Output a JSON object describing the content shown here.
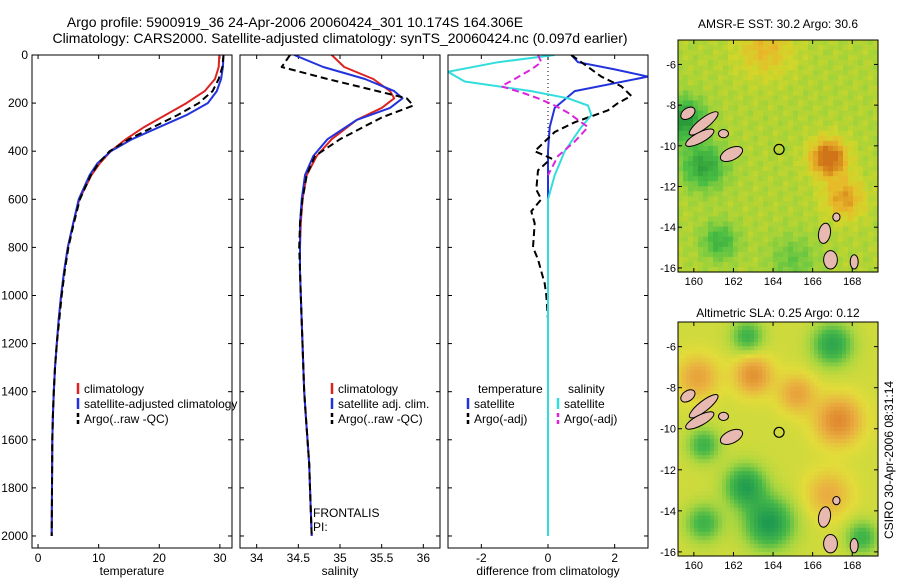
{
  "header": {
    "line1": "Argo profile:  5900919_36 24-Apr-2006 20060424_301 10.174S 164.306E",
    "line2": "Climatology: CARS2000. Satellite-adjusted climatology: synTS_20060424.nc (0.097d earlier)"
  },
  "footer": {
    "vertical_note": "CSIRO 30-Apr-2006 08:31:14"
  },
  "colors": {
    "climatology": "#dd2222",
    "satellite": "#2233dd",
    "argo": "#000000",
    "salinity_satellite": "#33dddd",
    "salinity_argo": "#dd22dd",
    "land": "#e8b9b0"
  },
  "chart_data": [
    {
      "id": "temperature",
      "type": "line",
      "xlabel": "temperature",
      "ylabel": "",
      "xlim": [
        -1,
        32
      ],
      "ylim": [
        2050,
        0
      ],
      "xticks": [
        0,
        10,
        20,
        30
      ],
      "yticks": [
        0,
        200,
        400,
        600,
        800,
        1000,
        1200,
        1400,
        1600,
        1800,
        2000
      ],
      "series": [
        {
          "name": "climatology",
          "color": "#dd2222",
          "dash": "",
          "x": [
            29.9,
            29.8,
            29.2,
            27.5,
            24.5,
            21.0,
            17.5,
            14.5,
            12.0,
            10.2,
            8.8,
            7.8,
            6.8,
            5.8,
            4.9,
            4.3,
            3.8,
            3.4,
            3.1,
            2.8,
            2.6,
            2.45,
            2.35,
            2.3,
            2.25
          ],
          "y": [
            0,
            50,
            100,
            150,
            200,
            250,
            300,
            350,
            400,
            450,
            500,
            550,
            600,
            700,
            800,
            900,
            1000,
            1100,
            1200,
            1300,
            1400,
            1500,
            1600,
            1800,
            2000
          ]
        },
        {
          "name": "satellite-adjusted climatology",
          "color": "#2233dd",
          "dash": "",
          "x": [
            30.6,
            30.5,
            30.2,
            29.5,
            28.0,
            24.5,
            20.0,
            15.5,
            12.0,
            9.8,
            8.5,
            7.6,
            6.7,
            5.8,
            4.9,
            4.3,
            3.8,
            3.4,
            3.1,
            2.8,
            2.6,
            2.45,
            2.35,
            2.3,
            2.25
          ],
          "y": [
            0,
            50,
            100,
            150,
            200,
            250,
            300,
            350,
            400,
            450,
            500,
            550,
            600,
            700,
            800,
            900,
            1000,
            1100,
            1200,
            1300,
            1400,
            1500,
            1600,
            1800,
            2000
          ]
        },
        {
          "name": "Argo(..raw -QC)",
          "color": "#000000",
          "dash": "7,4",
          "x": [
            30.6,
            30.4,
            29.8,
            28.8,
            26.5,
            23.0,
            19.0,
            15.0,
            11.8,
            10.0,
            8.7,
            7.8,
            6.9,
            5.9,
            5.0,
            4.4,
            3.9,
            3.5,
            3.1,
            2.8,
            2.6,
            2.45,
            2.35,
            2.3,
            2.25
          ],
          "y": [
            0,
            50,
            100,
            150,
            200,
            250,
            300,
            350,
            400,
            450,
            500,
            550,
            600,
            700,
            800,
            900,
            1000,
            1100,
            1200,
            1300,
            1400,
            1500,
            1600,
            1800,
            2000
          ]
        }
      ],
      "legend": {
        "position": "lower-center",
        "entries": [
          {
            "label": "climatology",
            "color": "#dd2222",
            "dash": ""
          },
          {
            "label": "satellite-adjusted climatology",
            "color": "#2233dd",
            "dash": ""
          },
          {
            "label": "Argo(..raw -QC)",
            "color": "#000000",
            "dash": "4,3"
          }
        ]
      },
      "annotations": []
    },
    {
      "id": "salinity",
      "type": "line",
      "xlabel": "salinity",
      "ylabel": "",
      "xlim": [
        33.8,
        36.2
      ],
      "ylim": [
        2050,
        0
      ],
      "xticks": [
        34,
        34.5,
        35,
        35.5,
        36
      ],
      "xtick_labels": [
        "34",
        "34.5",
        "35",
        "35.5",
        "36"
      ],
      "yticks": [
        0,
        200,
        400,
        600,
        800,
        1000,
        1200,
        1400,
        1600,
        1800,
        2000
      ],
      "series": [
        {
          "name": "climatology",
          "color": "#dd2222",
          "dash": "",
          "x": [
            34.9,
            35.05,
            35.4,
            35.6,
            35.65,
            35.5,
            35.2,
            34.9,
            34.72,
            34.6,
            34.55,
            34.53,
            34.52,
            34.52,
            34.53,
            34.55,
            34.57,
            34.59,
            34.61,
            34.63,
            34.64,
            34.66
          ],
          "y": [
            0,
            50,
            100,
            150,
            180,
            220,
            270,
            350,
            420,
            500,
            600,
            700,
            800,
            900,
            1000,
            1200,
            1400,
            1500,
            1600,
            1700,
            1800,
            2000
          ]
        },
        {
          "name": "satellite adj. clim.",
          "color": "#2233dd",
          "dash": "",
          "x": [
            34.45,
            34.8,
            35.3,
            35.65,
            35.75,
            35.6,
            35.2,
            34.85,
            34.68,
            34.58,
            34.54,
            34.52,
            34.52,
            34.52,
            34.53,
            34.55,
            34.57,
            34.59,
            34.61,
            34.63,
            34.64,
            34.66
          ],
          "y": [
            0,
            50,
            100,
            150,
            180,
            220,
            270,
            350,
            420,
            500,
            600,
            700,
            800,
            900,
            1000,
            1200,
            1400,
            1500,
            1600,
            1700,
            1800,
            2000
          ]
        },
        {
          "name": "Argo(..raw -QC)",
          "color": "#000000",
          "dash": "7,4",
          "x": [
            34.4,
            34.3,
            34.85,
            35.45,
            35.8,
            35.88,
            35.5,
            35.0,
            34.7,
            34.6,
            34.55,
            34.52,
            34.51,
            34.52,
            34.53,
            34.55,
            34.57,
            34.59,
            34.61,
            34.63,
            34.64,
            34.66
          ],
          "y": [
            0,
            50,
            100,
            150,
            180,
            210,
            260,
            350,
            420,
            500,
            600,
            700,
            800,
            900,
            1000,
            1200,
            1400,
            1500,
            1600,
            1700,
            1800,
            2000
          ]
        }
      ],
      "legend": {
        "position": "lower-center",
        "entries": [
          {
            "label": "climatology",
            "color": "#dd2222",
            "dash": ""
          },
          {
            "label": "satellite adj. clim.",
            "color": "#2233dd",
            "dash": ""
          },
          {
            "label": "Argo(..raw -QC)",
            "color": "#000000",
            "dash": "4,3"
          }
        ]
      },
      "annotations": [
        "FRONTALIS",
        "PI:"
      ]
    },
    {
      "id": "difference",
      "type": "line",
      "xlabel": "difference from climatology",
      "ylabel": "",
      "xlim": [
        -3,
        3
      ],
      "ylim": [
        2050,
        0
      ],
      "xticks": [
        -2,
        0,
        2
      ],
      "yticks": [
        0,
        200,
        400,
        600,
        800,
        1000,
        1200,
        1400,
        1600,
        1800,
        2000
      ],
      "zero_line": {
        "x": 0,
        "y_end": 900
      },
      "series": [
        {
          "name": "temperature satellite",
          "color": "#2233dd",
          "dash": "",
          "x": [
            0.7,
            0.9,
            2.0,
            3.0,
            0.8,
            0.2,
            0.05,
            0.0,
            0.0,
            0.0,
            0.0,
            0.0,
            0.0,
            0.0
          ],
          "y": [
            0,
            30,
            60,
            90,
            150,
            220,
            300,
            400,
            500,
            600,
            800,
            1000,
            1400,
            1800
          ]
        },
        {
          "name": "temperature Argo(-adj)",
          "color": "#000000",
          "dash": "7,4",
          "x": [
            0.7,
            1.1,
            1.6,
            2.2,
            2.5,
            2.1,
            1.8,
            0.8,
            0.2,
            -0.4,
            0.1,
            -0.3,
            -0.35,
            -0.2,
            -0.5,
            -0.4,
            -0.45,
            -0.3,
            -0.2,
            -0.1,
            -0.05,
            0.0
          ],
          "y": [
            0,
            40,
            90,
            130,
            170,
            200,
            230,
            280,
            320,
            400,
            430,
            480,
            560,
            600,
            650,
            700,
            800,
            850,
            900,
            950,
            1000,
            1100
          ]
        },
        {
          "name": "salinity satellite",
          "color": "#33dddd",
          "dash": "",
          "x": [
            0.2,
            -1.5,
            -3.0,
            -2.5,
            -0.5,
            0.6,
            1.2,
            1.3,
            1.0,
            0.5,
            0.2,
            0.0,
            0.0,
            0.0,
            0.0,
            0.0,
            0.0
          ],
          "y": [
            0,
            30,
            70,
            110,
            150,
            180,
            210,
            250,
            300,
            400,
            500,
            600,
            800,
            1000,
            1400,
            1800,
            2000
          ]
        },
        {
          "name": "salinity Argo(-adj)",
          "color": "#dd22dd",
          "dash": "7,4",
          "x": [
            -0.3,
            -0.2,
            -0.5,
            -1.0,
            -1.4,
            -0.7,
            -0.3,
            0.2,
            0.6,
            1.0,
            1.2,
            0.8,
            0.3,
            0.0
          ],
          "y": [
            0,
            30,
            60,
            100,
            130,
            160,
            180,
            210,
            240,
            280,
            300,
            360,
            420,
            500
          ]
        }
      ],
      "legend": {
        "position": "lower-center",
        "entries": [
          {
            "label": "temperature",
            "color": "",
            "dash": "",
            "column": 0
          },
          {
            "label": "satellite",
            "color": "#2233dd",
            "dash": "",
            "column": 0
          },
          {
            "label": "Argo(-adj)",
            "color": "#000000",
            "dash": "4,3",
            "column": 0
          },
          {
            "label": "salinity",
            "color": "",
            "dash": "",
            "column": 1
          },
          {
            "label": "satellite",
            "color": "#33dddd",
            "dash": "",
            "column": 1
          },
          {
            "label": "Argo(-adj)",
            "color": "#dd22dd",
            "dash": "4,3",
            "column": 1
          }
        ]
      },
      "annotations": []
    },
    {
      "id": "sst_map",
      "type": "heatmap",
      "title": "AMSR-E SST: 30.2 Argo: 30.6",
      "xlim": [
        159.2,
        169.3
      ],
      "ylim": [
        -16.2,
        -4.8
      ],
      "xticks": [
        160,
        162,
        164,
        166,
        168
      ],
      "yticks": [
        -6,
        -8,
        -10,
        -12,
        -14,
        -16
      ],
      "resolution": "coarse",
      "argo_position": {
        "lon": 164.306,
        "lat": -10.174
      },
      "palette": [
        [
          0.0,
          "#2a9a3a"
        ],
        [
          0.25,
          "#4cbf44"
        ],
        [
          0.45,
          "#9ad23c"
        ],
        [
          0.62,
          "#d2d62a"
        ],
        [
          0.78,
          "#e8b82a"
        ],
        [
          1.0,
          "#cf7418"
        ]
      ],
      "field": [
        {
          "lon": 159.5,
          "lat": -8.7,
          "amp": -0.55,
          "r": 1.0
        },
        {
          "lon": 160.5,
          "lat": -11.0,
          "amp": -0.45,
          "r": 1.1
        },
        {
          "lon": 161.3,
          "lat": -14.7,
          "amp": -0.35,
          "r": 0.9
        },
        {
          "lon": 166.8,
          "lat": -10.6,
          "amp": 0.6,
          "r": 0.9
        },
        {
          "lon": 163.6,
          "lat": -5.2,
          "amp": 0.25,
          "r": 1.4
        },
        {
          "lon": 167.6,
          "lat": -12.6,
          "amp": 0.35,
          "r": 1.0
        },
        {
          "lon": 165.0,
          "lat": -15.6,
          "amp": -0.2,
          "r": 1.2
        }
      ],
      "field_base": 0.52,
      "islands": [
        {
          "lon": 159.7,
          "lat": -8.4,
          "rx": 0.4,
          "ry": 0.25,
          "rot": -35
        },
        {
          "lon": 160.5,
          "lat": -8.9,
          "rx": 0.9,
          "ry": 0.25,
          "rot": -38
        },
        {
          "lon": 160.3,
          "lat": -9.6,
          "rx": 0.8,
          "ry": 0.25,
          "rot": -28
        },
        {
          "lon": 161.9,
          "lat": -10.4,
          "rx": 0.6,
          "ry": 0.3,
          "rot": -25
        },
        {
          "lon": 161.5,
          "lat": -9.4,
          "rx": 0.25,
          "ry": 0.2,
          "rot": 0
        },
        {
          "lon": 166.6,
          "lat": -14.3,
          "rx": 0.3,
          "ry": 0.5,
          "rot": 10
        },
        {
          "lon": 166.9,
          "lat": -15.6,
          "rx": 0.35,
          "ry": 0.45,
          "rot": 0
        },
        {
          "lon": 168.1,
          "lat": -15.7,
          "rx": 0.2,
          "ry": 0.35,
          "rot": 0
        },
        {
          "lon": 167.2,
          "lat": -13.5,
          "rx": 0.18,
          "ry": 0.2,
          "rot": 0
        }
      ]
    },
    {
      "id": "sla_map",
      "type": "heatmap",
      "title": "Altimetric SLA: 0.25 Argo: 0.12",
      "xlim": [
        159.2,
        169.3
      ],
      "ylim": [
        -16.2,
        -4.8
      ],
      "xticks": [
        160,
        162,
        164,
        166,
        168
      ],
      "yticks": [
        -6,
        -8,
        -10,
        -12,
        -14,
        -16
      ],
      "resolution": "fine",
      "argo_position": {
        "lon": 164.306,
        "lat": -10.174
      },
      "palette": [
        [
          0.0,
          "#1e9a50"
        ],
        [
          0.25,
          "#48b848"
        ],
        [
          0.45,
          "#aad640"
        ],
        [
          0.6,
          "#e2dc3a"
        ],
        [
          0.78,
          "#eab040"
        ],
        [
          1.0,
          "#e08a30"
        ]
      ],
      "field": [
        {
          "lon": 162.7,
          "lat": -5.5,
          "amp": -0.35,
          "r": 0.8
        },
        {
          "lon": 167.0,
          "lat": -5.9,
          "amp": -0.45,
          "r": 1.0
        },
        {
          "lon": 160.2,
          "lat": -7.5,
          "amp": 0.3,
          "r": 1.0
        },
        {
          "lon": 163.0,
          "lat": -7.4,
          "amp": 0.4,
          "r": 0.9
        },
        {
          "lon": 165.2,
          "lat": -8.3,
          "amp": 0.3,
          "r": 0.9
        },
        {
          "lon": 167.3,
          "lat": -9.6,
          "amp": 0.45,
          "r": 1.1
        },
        {
          "lon": 160.5,
          "lat": -10.8,
          "amp": -0.35,
          "r": 0.8
        },
        {
          "lon": 162.6,
          "lat": -12.8,
          "amp": -0.5,
          "r": 1.0
        },
        {
          "lon": 160.5,
          "lat": -14.6,
          "amp": -0.35,
          "r": 0.9
        },
        {
          "lon": 163.8,
          "lat": -14.6,
          "amp": -0.55,
          "r": 1.2
        },
        {
          "lon": 166.8,
          "lat": -13.2,
          "amp": 0.25,
          "r": 1.1
        },
        {
          "lon": 168.5,
          "lat": -15.3,
          "amp": -0.35,
          "r": 0.8
        }
      ],
      "field_base": 0.55,
      "islands": [
        {
          "lon": 159.7,
          "lat": -8.4,
          "rx": 0.4,
          "ry": 0.25,
          "rot": -35
        },
        {
          "lon": 160.5,
          "lat": -8.9,
          "rx": 0.9,
          "ry": 0.25,
          "rot": -38
        },
        {
          "lon": 160.3,
          "lat": -9.6,
          "rx": 0.8,
          "ry": 0.25,
          "rot": -28
        },
        {
          "lon": 161.9,
          "lat": -10.4,
          "rx": 0.6,
          "ry": 0.3,
          "rot": -25
        },
        {
          "lon": 161.5,
          "lat": -9.4,
          "rx": 0.25,
          "ry": 0.2,
          "rot": 0
        },
        {
          "lon": 166.6,
          "lat": -14.3,
          "rx": 0.3,
          "ry": 0.5,
          "rot": 10
        },
        {
          "lon": 166.9,
          "lat": -15.6,
          "rx": 0.35,
          "ry": 0.45,
          "rot": 0
        },
        {
          "lon": 168.1,
          "lat": -15.7,
          "rx": 0.2,
          "ry": 0.35,
          "rot": 0
        },
        {
          "lon": 167.2,
          "lat": -13.5,
          "rx": 0.18,
          "ry": 0.2,
          "rot": 0
        }
      ]
    }
  ]
}
